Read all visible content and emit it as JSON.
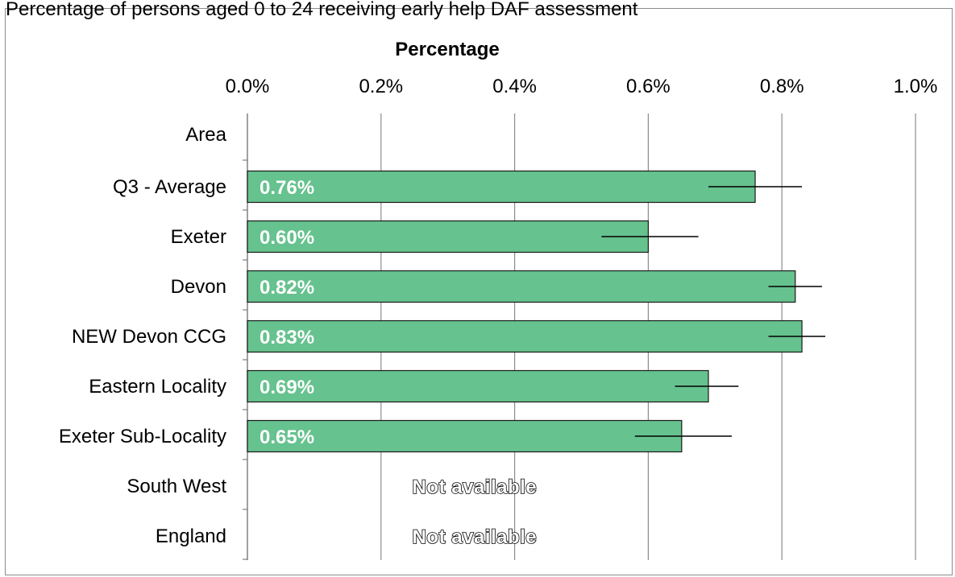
{
  "chart_data": {
    "type": "bar",
    "orientation": "horizontal",
    "title": "Percentage of persons aged 0 to 24 receiving early help DAF assessment",
    "xlabel": "Percentage",
    "xlim": [
      0,
      1.0
    ],
    "x_ticks": [
      "0.0%",
      "0.2%",
      "0.4%",
      "0.6%",
      "0.8%",
      "1.0%"
    ],
    "x_tick_values": [
      0,
      0.2,
      0.4,
      0.6,
      0.8,
      1.0
    ],
    "grid": true,
    "bar_color": "#66c28e",
    "header_row": "Area",
    "categories": [
      "Q3 - Average",
      "Exeter",
      "Devon",
      "NEW Devon CCG",
      "Eastern Locality",
      "Exeter Sub-Locality",
      "South West",
      "England"
    ],
    "values": [
      0.76,
      0.6,
      0.82,
      0.83,
      0.69,
      0.65,
      null,
      null
    ],
    "value_labels": [
      "0.76%",
      "0.60%",
      "0.82%",
      "0.83%",
      "0.69%",
      "0.65%",
      "",
      ""
    ],
    "error_low": [
      0.69,
      0.53,
      0.78,
      0.78,
      0.64,
      0.58,
      null,
      null
    ],
    "error_high": [
      0.83,
      0.675,
      0.86,
      0.865,
      0.735,
      0.725,
      null,
      null
    ],
    "not_available_text": "Not available"
  }
}
